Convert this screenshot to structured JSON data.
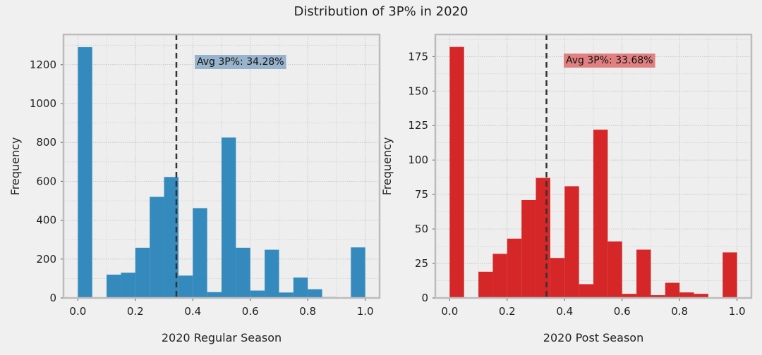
{
  "figure": {
    "title": "Distribution of 3P% in 2020"
  },
  "chart_data": [
    {
      "type": "bar",
      "xlabel": "2020 Regular Season",
      "ylabel": "Frequency",
      "xlim": [
        -0.05,
        1.05
      ],
      "ylim": [
        0,
        1355
      ],
      "xticks": [
        "0.0",
        "0.2",
        "0.4",
        "0.6",
        "0.8",
        "1.0"
      ],
      "yticks": [
        "0",
        "200",
        "400",
        "600",
        "800",
        "1000",
        "1200"
      ],
      "bin_width": 0.05,
      "bin_starts": [
        0,
        0.05,
        0.1,
        0.15,
        0.2,
        0.25,
        0.3,
        0.35,
        0.4,
        0.45,
        0.5,
        0.55,
        0.6,
        0.65,
        0.7,
        0.75,
        0.8,
        0.85,
        0.9,
        0.95
      ],
      "values": [
        1290,
        0,
        120,
        130,
        258,
        520,
        622,
        115,
        462,
        30,
        825,
        258,
        38,
        248,
        28,
        105,
        45,
        5,
        0,
        260
      ],
      "mean_line": 0.3428,
      "annotation": "Avg 3P%: 34.28%",
      "color": "#348abd",
      "annotation_bg": "#98b3cc",
      "grid": true
    },
    {
      "type": "bar",
      "xlabel": "2020 Post Season",
      "ylabel": "Frequency",
      "xlim": [
        -0.05,
        1.05
      ],
      "ylim": [
        0,
        191
      ],
      "xticks": [
        "0.0",
        "0.2",
        "0.4",
        "0.6",
        "0.8",
        "1.0"
      ],
      "yticks": [
        "0",
        "25",
        "50",
        "75",
        "100",
        "125",
        "150",
        "175"
      ],
      "bin_width": 0.05,
      "bin_starts": [
        0,
        0.05,
        0.1,
        0.15,
        0.2,
        0.25,
        0.3,
        0.35,
        0.4,
        0.45,
        0.5,
        0.55,
        0.6,
        0.65,
        0.7,
        0.75,
        0.8,
        0.85,
        0.9,
        0.95
      ],
      "values": [
        182,
        0,
        19,
        32,
        43,
        71,
        87,
        29,
        81,
        10,
        122,
        41,
        3,
        35,
        2,
        11,
        4,
        3,
        0,
        33
      ],
      "mean_line": 0.3368,
      "annotation": "Avg 3P%: 33.68%",
      "color": "#d62728",
      "annotation_bg": "#e08080",
      "grid": true
    }
  ]
}
